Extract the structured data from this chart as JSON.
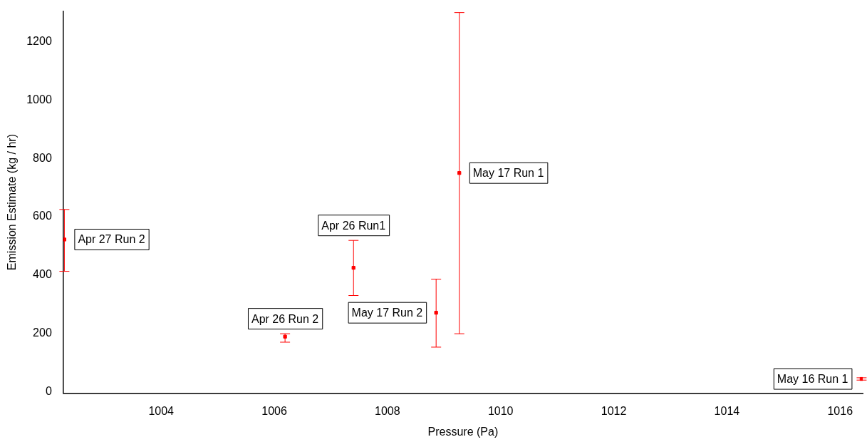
{
  "chart_data": {
    "type": "scatter",
    "xlabel": "Pressure (Pa)",
    "ylabel": "Emission Estimate (kg / hr)",
    "x": [
      1002.29,
      1006.19,
      1007.4,
      1008.86,
      1009.27,
      1016.38
    ],
    "series": [
      {
        "color": "#ff0000",
        "values": [
          522,
          189,
          425,
          271,
          750,
          44
        ],
        "errors": [
          [
            413,
            625
          ],
          [
            170,
            199
          ],
          [
            330,
            519
          ],
          [
            153,
            386
          ],
          [
            199,
            1300
          ],
          [
            40,
            48
          ]
        ]
      }
    ],
    "xlim": [
      1002.27,
      1016.4
    ],
    "xticks": [
      1004,
      1006,
      1008,
      1010,
      1012,
      1014,
      1016
    ],
    "ylim": [
      -5,
      1305
    ],
    "yticks": [
      0,
      200,
      400,
      600,
      800,
      1000,
      1200
    ],
    "grid": false,
    "legend": false,
    "marker": "square",
    "annotations": [
      {
        "text": "Apr 27 Run 2",
        "x": 1002.29,
        "y": 522
      },
      {
        "text": "Apr 26 Run 2",
        "x": 1006.19,
        "y": 189
      },
      {
        "text": "Apr 26 Run1",
        "x": 1007.4,
        "y": 519
      },
      {
        "text": "May 17 Run 2",
        "x": 1008.86,
        "y": 271
      },
      {
        "text": "May 17 Run 1",
        "x": 1009.27,
        "y": 750
      },
      {
        "text": "May 16 Run 1",
        "x": 1016.38,
        "y": 44
      }
    ]
  }
}
